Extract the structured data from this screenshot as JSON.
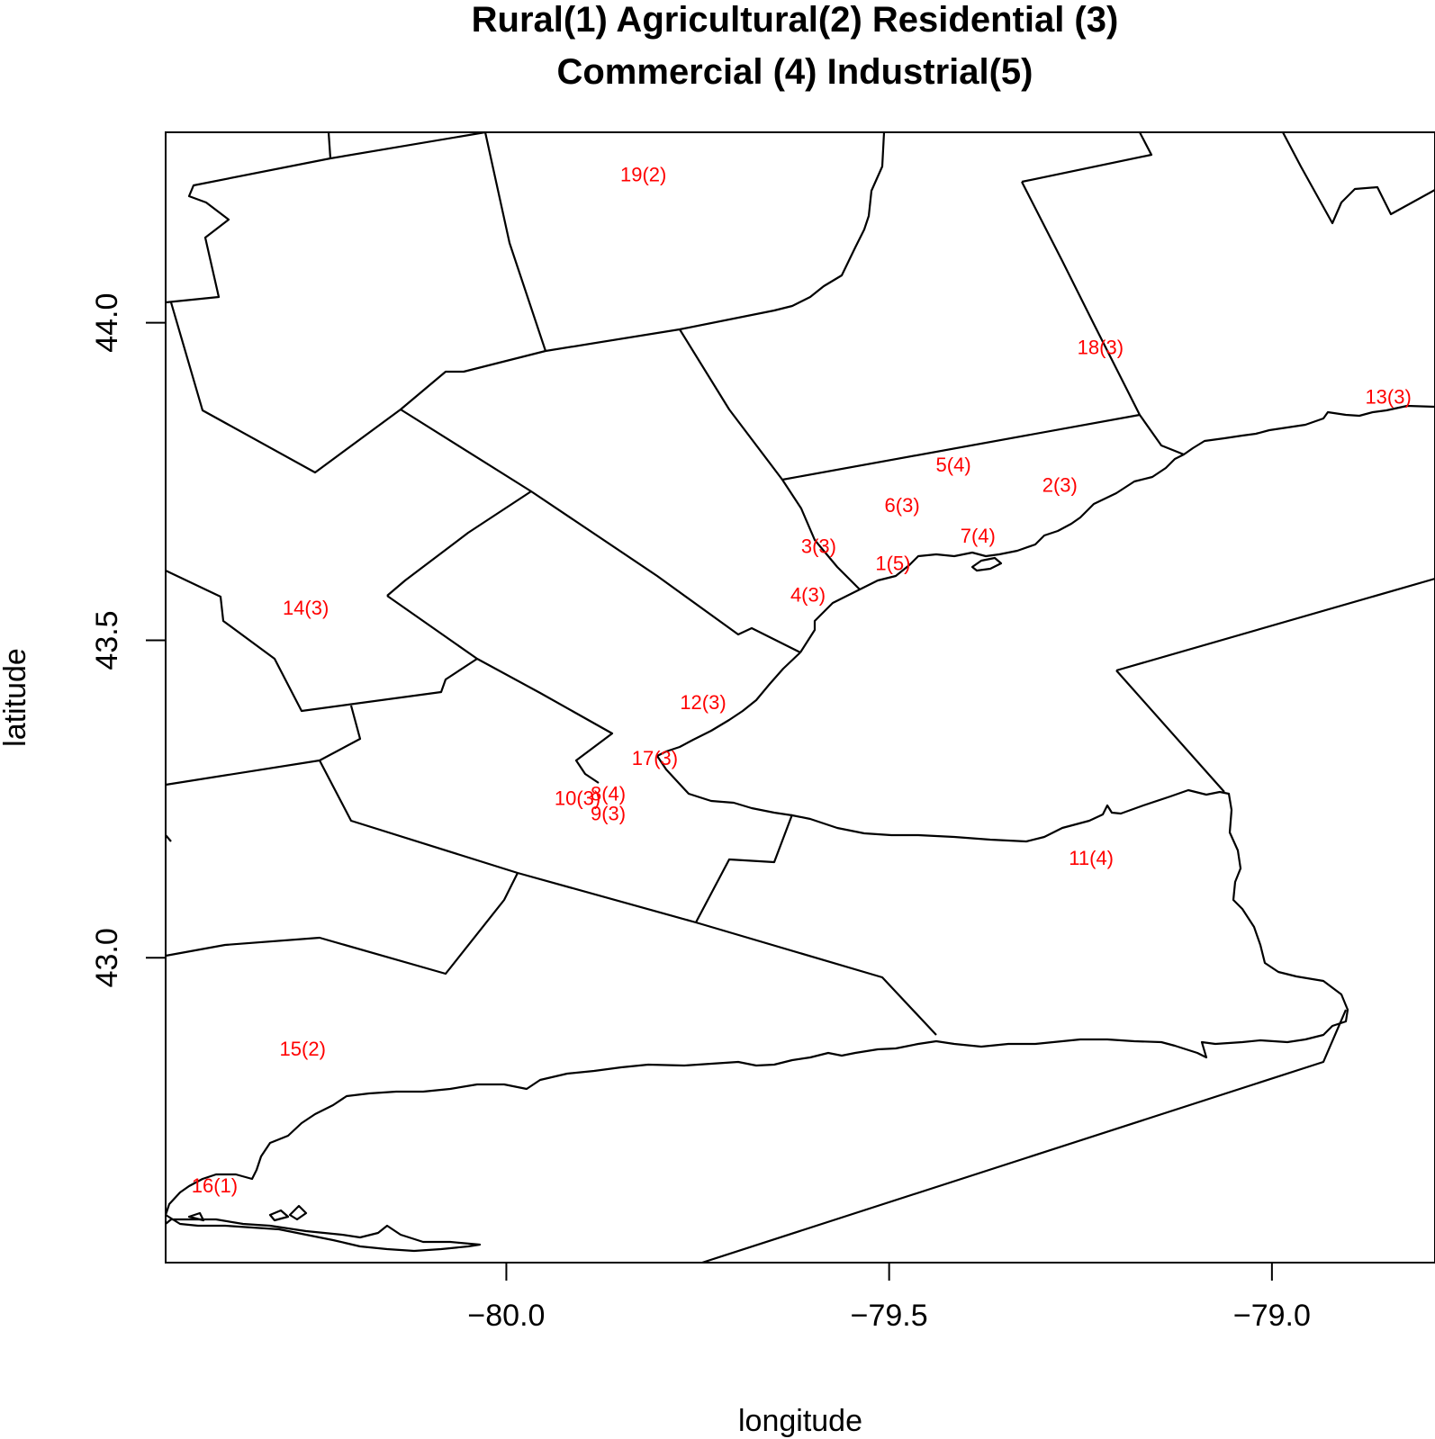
{
  "title": {
    "line1": "Rural(1) Agricultural(2) Residential (3)",
    "line2": "Commercial (4) Industrial(5)"
  },
  "axes": {
    "xlabel": "longitude",
    "ylabel": "latitude",
    "xlim": [
      -80.445,
      -78.787
    ],
    "ylim": [
      42.52,
      44.3
    ],
    "xticks": [
      {
        "value": -80.0,
        "label": "−80.0"
      },
      {
        "value": -79.5,
        "label": "−79.5"
      },
      {
        "value": -79.0,
        "label": "−79.0"
      }
    ],
    "yticks": [
      {
        "value": 43.0,
        "label": "43.0"
      },
      {
        "value": 43.5,
        "label": "43.5"
      },
      {
        "value": 44.0,
        "label": "44.0"
      }
    ]
  },
  "label_color": "#ff0000",
  "sites": [
    {
      "label": "1(5)",
      "lon": -79.495,
      "lat": 43.622
    },
    {
      "label": "2(3)",
      "lon": -79.277,
      "lat": 43.745
    },
    {
      "label": "3(3)",
      "lon": -79.592,
      "lat": 43.649
    },
    {
      "label": "4(3)",
      "lon": -79.606,
      "lat": 43.572
    },
    {
      "label": "5(4)",
      "lon": -79.416,
      "lat": 43.777
    },
    {
      "label": "6(3)",
      "lon": -79.483,
      "lat": 43.713
    },
    {
      "label": "7(4)",
      "lon": -79.384,
      "lat": 43.665
    },
    {
      "label": "8(4)",
      "lon": -79.867,
      "lat": 43.259
    },
    {
      "label": "9(3)",
      "lon": -79.867,
      "lat": 43.228
    },
    {
      "label": "10(3)",
      "lon": -79.907,
      "lat": 43.252
    },
    {
      "label": "11(4)",
      "lon": -79.236,
      "lat": 43.158
    },
    {
      "label": "12(3)",
      "lon": -79.743,
      "lat": 43.403
    },
    {
      "label": "13(3)",
      "lon": -78.848,
      "lat": 43.884
    },
    {
      "label": "14(3)",
      "lon": -80.262,
      "lat": 43.552
    },
    {
      "label": "15(2)",
      "lon": -80.266,
      "lat": 42.857
    },
    {
      "label": "16(1)",
      "lon": -80.381,
      "lat": 42.642
    },
    {
      "label": "17(3)",
      "lon": -79.806,
      "lat": 43.315
    },
    {
      "label": "18(3)",
      "lon": -79.224,
      "lat": 43.962
    },
    {
      "label": "19(2)",
      "lon": -79.821,
      "lat": 44.234
    }
  ]
}
